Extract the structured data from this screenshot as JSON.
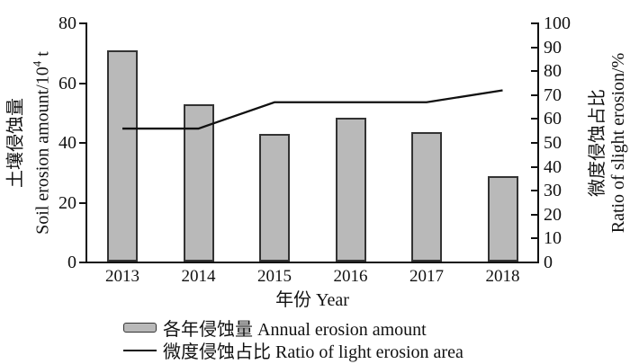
{
  "colors": {
    "background": "#ffffff",
    "bar_fill": "#b9b9b9",
    "bar_border": "#333333",
    "line": "#111111",
    "axis": "#111111",
    "text": "#111111"
  },
  "axes": {
    "left": {
      "title_zh": "土壤侵蚀量",
      "title_en_prefix": "Soil erosion amount/10",
      "title_en_sup": "4",
      "title_en_suffix": " t"
    },
    "right": {
      "title_zh": "微度侵蚀占比",
      "title_en": "Ratio of slight erosion/%"
    },
    "x": {
      "title": "年份 Year"
    }
  },
  "legend": {
    "items": [
      {
        "label": "各年侵蚀量 Annual erosion amount",
        "marker": "bar-swatch"
      },
      {
        "label": "微度侵蚀占比 Ratio of light erosion area",
        "marker": "line-swatch"
      }
    ]
  },
  "chart_data": {
    "type": "combo-bar-line",
    "title": "",
    "categories": [
      "2013",
      "2014",
      "2015",
      "2016",
      "2017",
      "2018"
    ],
    "series": [
      {
        "name": "各年侵蚀量 Annual erosion amount",
        "type": "bar",
        "axis": "left",
        "values": [
          71,
          53,
          43,
          48.5,
          43.5,
          29
        ]
      },
      {
        "name": "微度侵蚀占比 Ratio of light erosion area",
        "type": "line",
        "axis": "right",
        "values": [
          56,
          56,
          67,
          67,
          67,
          72
        ]
      }
    ],
    "xlabel": "年份 Year",
    "left_axis_label": "土壤侵蚀量 Soil erosion amount/10⁴ t",
    "right_axis_label": "微度侵蚀占比 Ratio of slight erosion/%",
    "left_ylim": [
      0,
      80
    ],
    "right_ylim": [
      0,
      100
    ],
    "left_ticks": [
      "80",
      "60",
      "40",
      "20",
      "0"
    ],
    "right_ticks": [
      "100",
      "90",
      "80",
      "70",
      "60",
      "50",
      "40",
      "30",
      "20",
      "10",
      "0"
    ],
    "grid": false,
    "legend_position": "bottom"
  }
}
